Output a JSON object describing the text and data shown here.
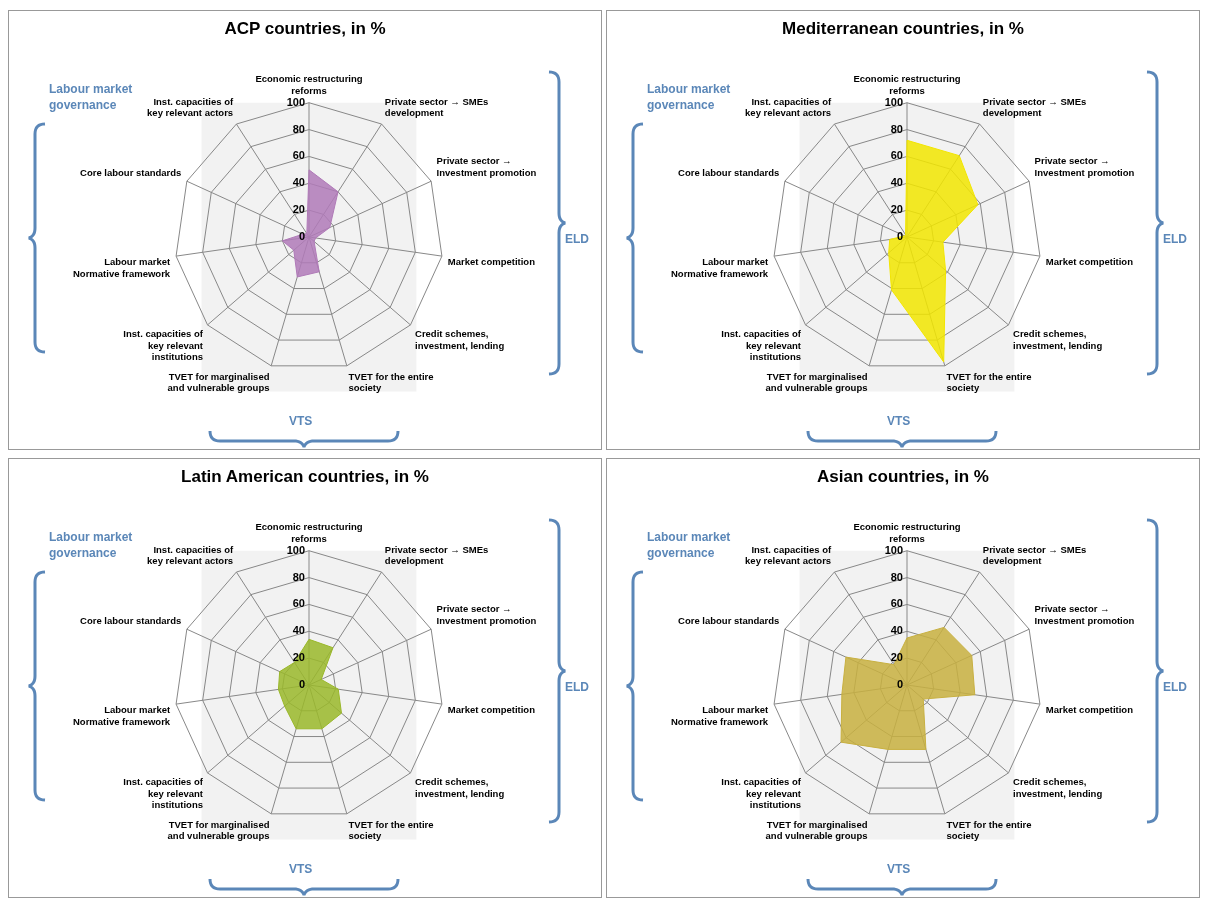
{
  "chart_data": [
    {
      "type": "radar",
      "title": "ACP countries, in %",
      "categories": [
        "Economic restructuring reforms",
        "Private sector → SMEs development",
        "Private sector → Investment promotion",
        "Market competition",
        "Credit schemes, investment, lending",
        "TVET for the entire society",
        "TVET for marginalised and vulnerable groups",
        "Inst. capacities of key relevant institutions",
        "Labour market Normative framework",
        "Core labour standards",
        "Inst. capacities of key relevant actors"
      ],
      "series": [
        {
          "color": "#b07ab8",
          "values": [
            50,
            40,
            17,
            5,
            5,
            27,
            31,
            15,
            20,
            5,
            3
          ]
        }
      ],
      "ylim": [
        0,
        100
      ],
      "yticks": [
        0,
        20,
        40,
        60,
        80,
        100
      ],
      "grid": true,
      "annotations": [
        "Labour market governance",
        "ELD",
        "VTS"
      ]
    },
    {
      "type": "radar",
      "title": "Mediterranean countries, in %",
      "categories": [
        "Economic restructuring reforms",
        "Private sector → SMEs development",
        "Private sector → Investment promotion",
        "Market competition",
        "Credit schemes, investment, lending",
        "TVET for the entire society",
        "TVET for marginalised and vulnerable groups",
        "Inst. capacities of key relevant institutions",
        "Labour market Normative framework",
        "Core labour standards",
        "Inst. capacities of key relevant actors"
      ],
      "series": [
        {
          "color": "#f2e600",
          "values": [
            72,
            72,
            58,
            27,
            38,
            97,
            41,
            18,
            13,
            2,
            2
          ]
        }
      ],
      "ylim": [
        0,
        100
      ],
      "yticks": [
        0,
        20,
        40,
        60,
        80,
        100
      ],
      "grid": true,
      "annotations": [
        "Labour market governance",
        "ELD",
        "VTS"
      ]
    },
    {
      "type": "radar",
      "title": "Latin American countries, in %",
      "categories": [
        "Economic restructuring reforms",
        "Private sector → SMEs development",
        "Private sector → Investment promotion",
        "Market competition",
        "Credit schemes, investment, lending",
        "TVET for the entire society",
        "TVET for marginalised and vulnerable groups",
        "Inst. capacities of key relevant institutions",
        "Labour market Normative framework",
        "Core labour standards",
        "Inst. capacities of key relevant actors"
      ],
      "series": [
        {
          "color": "#9ab82a",
          "values": [
            34,
            33,
            10,
            22,
            32,
            34,
            34,
            24,
            23,
            24,
            20
          ]
        }
      ],
      "ylim": [
        0,
        100
      ],
      "yticks": [
        0,
        20,
        40,
        60,
        80,
        100
      ],
      "grid": true,
      "annotations": [
        "Labour market governance",
        "ELD",
        "VTS"
      ]
    },
    {
      "type": "radar",
      "title": "Asian countries, in %",
      "categories": [
        "Economic restructuring reforms",
        "Private sector → SMEs development",
        "Private sector → Investment promotion",
        "Market competition",
        "Credit schemes, investment, lending",
        "TVET for the entire society",
        "TVET for marginalised and vulnerable groups",
        "Inst. capacities of key relevant institutions",
        "Labour market Normative framework",
        "Core labour standards",
        "Inst. capacities of key relevant actors"
      ],
      "series": [
        {
          "color": "#c8b040",
          "values": [
            35,
            51,
            53,
            51,
            16,
            50,
            50,
            65,
            49,
            50,
            18
          ]
        }
      ],
      "ylim": [
        0,
        100
      ],
      "yticks": [
        0,
        20,
        40,
        60,
        80,
        100
      ],
      "grid": true,
      "annotations": [
        "Labour market governance",
        "ELD",
        "VTS"
      ]
    }
  ]
}
